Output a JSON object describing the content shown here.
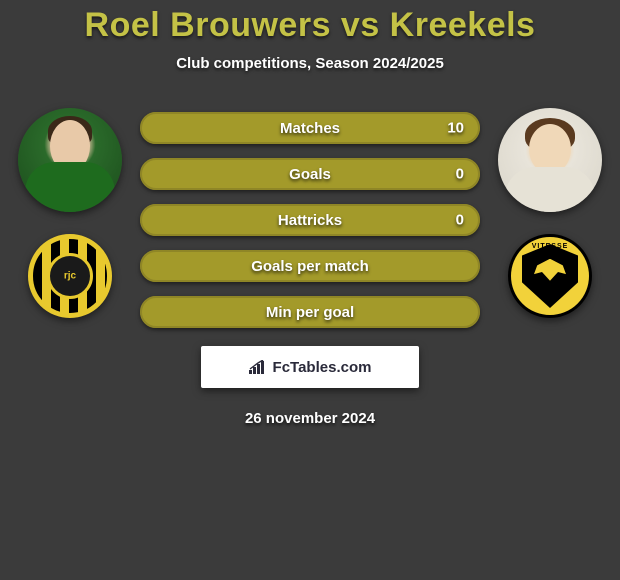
{
  "title": "Roel Brouwers vs Kreekels",
  "subtitle": "Club competitions, Season 2024/2025",
  "accent_color": "#b2a82e",
  "accent_fill": "#a39a2a",
  "bar_border": "#8f8626",
  "background_color": "#3b3b3b",
  "title_color": "#c4c246",
  "text_color": "#ffffff",
  "players": {
    "left": {
      "name": "Roel Brouwers",
      "club": "Roda JC",
      "club_abbr": "rjc"
    },
    "right": {
      "name": "Kreekels",
      "club": "Vitesse",
      "club_abbr": "VITESSE"
    }
  },
  "stats": [
    {
      "label": "Matches",
      "value": "10",
      "fill_pct": 100,
      "show_value": true
    },
    {
      "label": "Goals",
      "value": "0",
      "fill_pct": 100,
      "show_value": true
    },
    {
      "label": "Hattricks",
      "value": "0",
      "fill_pct": 100,
      "show_value": true
    },
    {
      "label": "Goals per match",
      "value": "",
      "fill_pct": 100,
      "show_value": false
    },
    {
      "label": "Min per goal",
      "value": "",
      "fill_pct": 100,
      "show_value": false
    }
  ],
  "footer": {
    "site": "FcTables.com",
    "date": "26 november 2024"
  },
  "typography": {
    "title_fontsize": 34,
    "subtitle_fontsize": 15,
    "stat_fontsize": 15
  }
}
